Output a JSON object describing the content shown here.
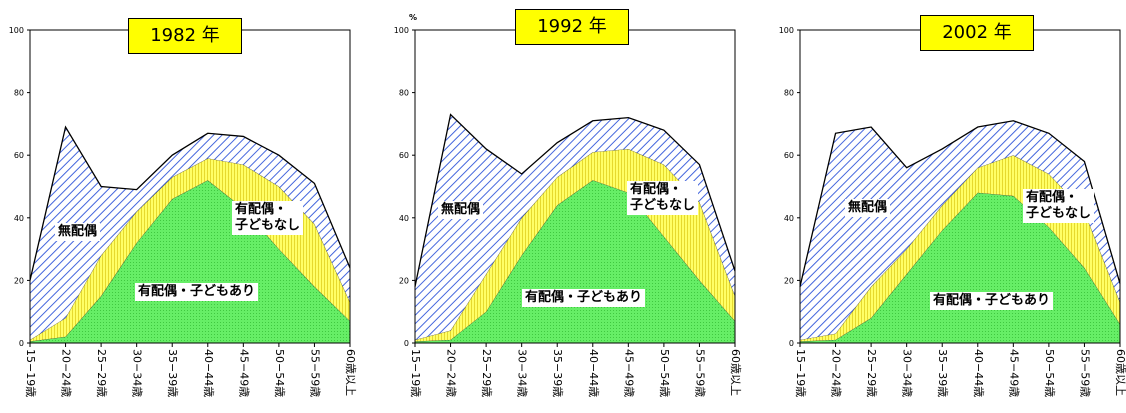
{
  "chart_data": [
    {
      "type": "stacked-area",
      "title": "1982 年",
      "categories": [
        "15−19歳",
        "20−24歳",
        "25−29歳",
        "30−34歳",
        "35−39歳",
        "40−44歳",
        "45−49歳",
        "50−54歳",
        "55−59歳",
        "60歳以上"
      ],
      "ylim": [
        0,
        100
      ],
      "yticks": [
        0,
        20,
        40,
        60,
        80,
        100
      ],
      "series": [
        {
          "name": "有配偶・子どもあり",
          "color": "#66ee66",
          "values": [
            0.5,
            2,
            15,
            32,
            46,
            52,
            43,
            30,
            18,
            7
          ]
        },
        {
          "name": "有配偶・\n子どもなし",
          "color": "#ffff66",
          "values": [
            0.5,
            6,
            13,
            10,
            7,
            7,
            14,
            20,
            20,
            6
          ]
        },
        {
          "name": "無配偶",
          "color": "#4466dd",
          "values": [
            19,
            61,
            22,
            7,
            7,
            8,
            9,
            10,
            13,
            11
          ]
        }
      ]
    },
    {
      "type": "stacked-area",
      "title": "1992 年",
      "y_label": "%",
      "categories": [
        "15−19歳",
        "20−24歳",
        "25−29歳",
        "30−34歳",
        "35−39歳",
        "40−44歳",
        "45−49歳",
        "50−54歳",
        "55−59歳",
        "60歳以上"
      ],
      "ylim": [
        0,
        100
      ],
      "yticks": [
        0,
        20,
        40,
        60,
        80,
        100
      ],
      "series": [
        {
          "name": "有配偶・子どもあり",
          "color": "#66ee66",
          "values": [
            0.5,
            1,
            10,
            28,
            44,
            52,
            48,
            34,
            20,
            7
          ]
        },
        {
          "name": "有配偶・\n子どもなし",
          "color": "#ffff66",
          "values": [
            0.5,
            3,
            12,
            12,
            9,
            9,
            14,
            23,
            25,
            8
          ]
        },
        {
          "name": "無配偶",
          "color": "#4466dd",
          "values": [
            17,
            69,
            40,
            14,
            11,
            10,
            10,
            11,
            12,
            8
          ]
        }
      ]
    },
    {
      "type": "stacked-area",
      "title": "2002 年",
      "categories": [
        "15−19歳",
        "20−24歳",
        "25−29歳",
        "30−34歳",
        "35−39歳",
        "40−44歳",
        "45−49歳",
        "50−54歳",
        "55−59歳",
        "60歳以上"
      ],
      "ylim": [
        0,
        100
      ],
      "yticks": [
        0,
        20,
        40,
        60,
        80,
        100
      ],
      "series": [
        {
          "name": "有配偶・子どもあり",
          "color": "#66ee66",
          "values": [
            0.5,
            1,
            8,
            22,
            36,
            48,
            47,
            37,
            24,
            6
          ]
        },
        {
          "name": "有配偶・\n子どもなし",
          "color": "#ffff66",
          "values": [
            0.5,
            2,
            10,
            8,
            8,
            8,
            13,
            17,
            18,
            7
          ]
        },
        {
          "name": "無配偶",
          "color": "#4466dd",
          "values": [
            17,
            64,
            51,
            26,
            18,
            13,
            11,
            13,
            16,
            6
          ]
        }
      ]
    }
  ]
}
